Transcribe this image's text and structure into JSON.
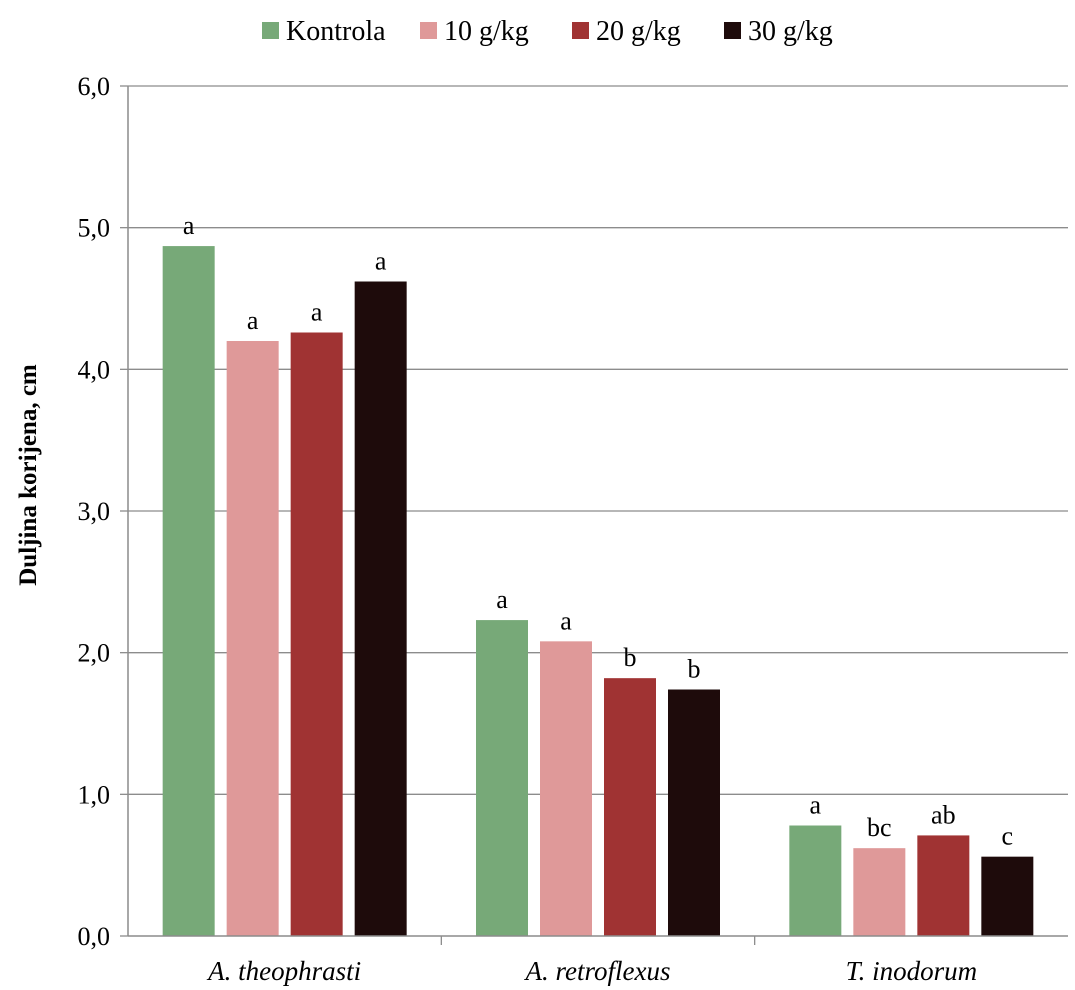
{
  "chart_data": {
    "type": "bar",
    "categories": [
      "A. theophrasti",
      "A. retroflexus",
      "T. inodorum"
    ],
    "series": [
      {
        "name": "Kontrola",
        "color": "#77a978",
        "values": [
          4.87,
          2.23,
          0.78
        ],
        "labels": [
          "a",
          "a",
          "a"
        ]
      },
      {
        "name": "10 g/kg",
        "color": "#df9999",
        "values": [
          4.2,
          2.08,
          0.62
        ],
        "labels": [
          "a",
          "a",
          "bc"
        ]
      },
      {
        "name": "20 g/kg",
        "color": "#a03333",
        "values": [
          4.26,
          1.82,
          0.71
        ],
        "labels": [
          "a",
          "b",
          "ab"
        ]
      },
      {
        "name": "30 g/kg",
        "color": "#1e0b0b",
        "values": [
          4.62,
          1.74,
          0.56
        ],
        "labels": [
          "a",
          "b",
          "c"
        ]
      }
    ],
    "ylabel": "Duljina korijena, cm",
    "xlabel": "",
    "ylim": [
      0,
      6
    ],
    "yticks": [
      "0,0",
      "1,0",
      "2,0",
      "3,0",
      "4,0",
      "5,0",
      "6,0"
    ],
    "grid": true,
    "legend_position": "top"
  }
}
